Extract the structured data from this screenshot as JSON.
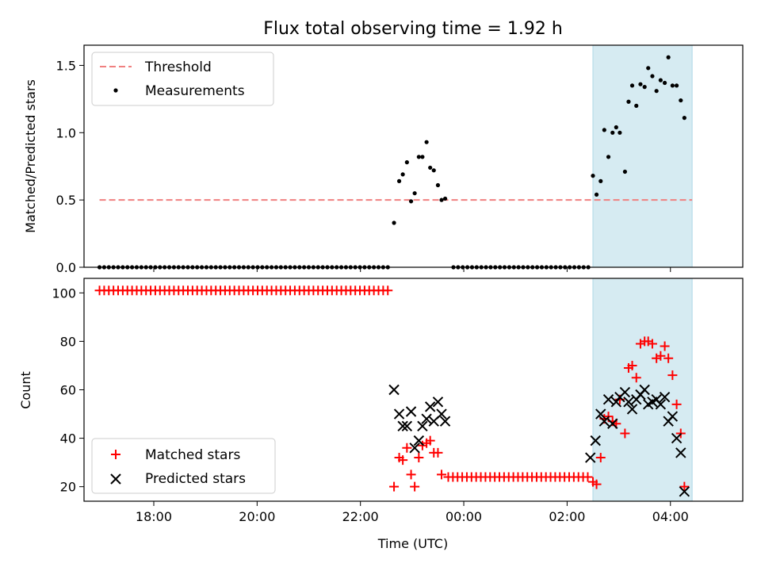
{
  "chart_data": {
    "title": "Flux total observing time = 1.92 h",
    "xlabel": "Time (UTC)",
    "x_unit": "hours since 00:00 UTC of the second day (negative = previous evening)",
    "xlim": [
      -7.35,
      5.4
    ],
    "xticks": [
      {
        "value": -6,
        "label": "18:00"
      },
      {
        "value": -4,
        "label": "20:00"
      },
      {
        "value": -2,
        "label": "22:00"
      },
      {
        "value": 0,
        "label": "00:00"
      },
      {
        "value": 2,
        "label": "02:00"
      },
      {
        "value": 4,
        "label": "04:00"
      }
    ],
    "shaded_span": {
      "x": [
        2.5,
        4.42
      ],
      "color": "#add8e6"
    },
    "top": {
      "type": "scatter",
      "ylabel": "Matched/Predicted stars",
      "ylim": [
        0,
        1.65
      ],
      "yticks": [
        {
          "value": 0,
          "label": "0.0"
        },
        {
          "value": 0.5,
          "label": "0.5"
        },
        {
          "value": 1.0,
          "label": "1.0"
        },
        {
          "value": 1.5,
          "label": "1.5"
        }
      ],
      "legend_position": "top-left",
      "threshold": {
        "name": "Threshold",
        "value": 0.5,
        "x": [
          -7.05,
          4.42
        ],
        "color": "#f08080"
      },
      "measurements": {
        "name": "Measurements",
        "color": "#000000",
        "zero_runs": [
          {
            "from": -7.05,
            "to": -1.45,
            "step": 0.09,
            "y": 0
          },
          {
            "from": -0.2,
            "to": 2.43,
            "step": 0.09,
            "y": 0
          }
        ],
        "points": [
          [
            -1.35,
            0.33
          ],
          [
            -1.25,
            0.64
          ],
          [
            -1.18,
            0.69
          ],
          [
            -1.1,
            0.78
          ],
          [
            -1.02,
            0.49
          ],
          [
            -0.95,
            0.55
          ],
          [
            -0.87,
            0.82
          ],
          [
            -0.8,
            0.82
          ],
          [
            -0.72,
            0.93
          ],
          [
            -0.65,
            0.74
          ],
          [
            -0.58,
            0.72
          ],
          [
            -0.5,
            0.61
          ],
          [
            -0.43,
            0.5
          ],
          [
            -0.36,
            0.51
          ],
          [
            2.5,
            0.68
          ],
          [
            2.57,
            0.54
          ],
          [
            2.65,
            0.64
          ],
          [
            2.72,
            1.02
          ],
          [
            2.8,
            0.82
          ],
          [
            2.88,
            1.0
          ],
          [
            2.95,
            1.04
          ],
          [
            3.02,
            1.0
          ],
          [
            3.12,
            0.71
          ],
          [
            3.19,
            1.23
          ],
          [
            3.26,
            1.35
          ],
          [
            3.34,
            1.2
          ],
          [
            3.42,
            1.36
          ],
          [
            3.5,
            1.34
          ],
          [
            3.57,
            1.48
          ],
          [
            3.65,
            1.42
          ],
          [
            3.73,
            1.31
          ],
          [
            3.81,
            1.39
          ],
          [
            3.89,
            1.37
          ],
          [
            3.96,
            1.56
          ],
          [
            4.04,
            1.35
          ],
          [
            4.12,
            1.35
          ],
          [
            4.2,
            1.24
          ],
          [
            4.27,
            1.11
          ]
        ]
      }
    },
    "bottom": {
      "type": "scatter",
      "ylabel": "Count",
      "ylim": [
        14,
        106
      ],
      "yticks": [
        {
          "value": 20,
          "label": "20"
        },
        {
          "value": 40,
          "label": "40"
        },
        {
          "value": 60,
          "label": "60"
        },
        {
          "value": 80,
          "label": "80"
        },
        {
          "value": 100,
          "label": "100"
        }
      ],
      "legend_position": "bottom-left",
      "series": [
        {
          "name": "Matched stars",
          "marker": "plus",
          "color": "#ff0000",
          "runs": [
            {
              "from": -7.05,
              "to": -1.45,
              "step": 0.09,
              "y": 101
            },
            {
              "from": -0.3,
              "to": 2.43,
              "step": 0.09,
              "y": 24
            }
          ],
          "points": [
            [
              -1.35,
              20
            ],
            [
              -1.25,
              32
            ],
            [
              -1.18,
              31
            ],
            [
              -1.1,
              36
            ],
            [
              -1.02,
              25
            ],
            [
              -0.95,
              20
            ],
            [
              -0.87,
              32
            ],
            [
              -0.8,
              37
            ],
            [
              -0.72,
              38
            ],
            [
              -0.65,
              39
            ],
            [
              -0.58,
              34
            ],
            [
              -0.5,
              34
            ],
            [
              -0.43,
              25
            ],
            [
              2.5,
              22
            ],
            [
              2.57,
              21
            ],
            [
              2.65,
              32
            ],
            [
              2.72,
              48
            ],
            [
              2.8,
              49
            ],
            [
              2.88,
              47
            ],
            [
              2.95,
              46
            ],
            [
              3.02,
              56
            ],
            [
              3.12,
              42
            ],
            [
              3.19,
              69
            ],
            [
              3.26,
              70
            ],
            [
              3.34,
              65
            ],
            [
              3.42,
              79
            ],
            [
              3.5,
              80
            ],
            [
              3.57,
              80
            ],
            [
              3.65,
              79
            ],
            [
              3.73,
              73
            ],
            [
              3.81,
              74
            ],
            [
              3.89,
              78
            ],
            [
              3.96,
              73
            ],
            [
              4.04,
              66
            ],
            [
              4.12,
              54
            ],
            [
              4.2,
              42
            ],
            [
              4.27,
              20
            ]
          ]
        },
        {
          "name": "Predicted stars",
          "marker": "x",
          "color": "#000000",
          "points": [
            [
              -1.35,
              60
            ],
            [
              -1.25,
              50
            ],
            [
              -1.18,
              45
            ],
            [
              -1.1,
              45
            ],
            [
              -1.02,
              51
            ],
            [
              -0.95,
              36
            ],
            [
              -0.87,
              39
            ],
            [
              -0.8,
              45
            ],
            [
              -0.72,
              48
            ],
            [
              -0.65,
              53
            ],
            [
              -0.58,
              47
            ],
            [
              -0.5,
              55
            ],
            [
              -0.43,
              50
            ],
            [
              -0.36,
              47
            ],
            [
              2.45,
              32
            ],
            [
              2.55,
              39
            ],
            [
              2.65,
              50
            ],
            [
              2.72,
              47
            ],
            [
              2.8,
              56
            ],
            [
              2.88,
              46
            ],
            [
              2.95,
              55
            ],
            [
              3.02,
              57
            ],
            [
              3.12,
              59
            ],
            [
              3.19,
              55
            ],
            [
              3.26,
              52
            ],
            [
              3.34,
              56
            ],
            [
              3.42,
              58
            ],
            [
              3.5,
              60
            ],
            [
              3.57,
              54
            ],
            [
              3.65,
              55
            ],
            [
              3.73,
              56
            ],
            [
              3.81,
              54
            ],
            [
              3.89,
              57
            ],
            [
              3.96,
              47
            ],
            [
              4.04,
              49
            ],
            [
              4.12,
              40
            ],
            [
              4.2,
              34
            ],
            [
              4.27,
              18
            ]
          ]
        }
      ]
    }
  }
}
